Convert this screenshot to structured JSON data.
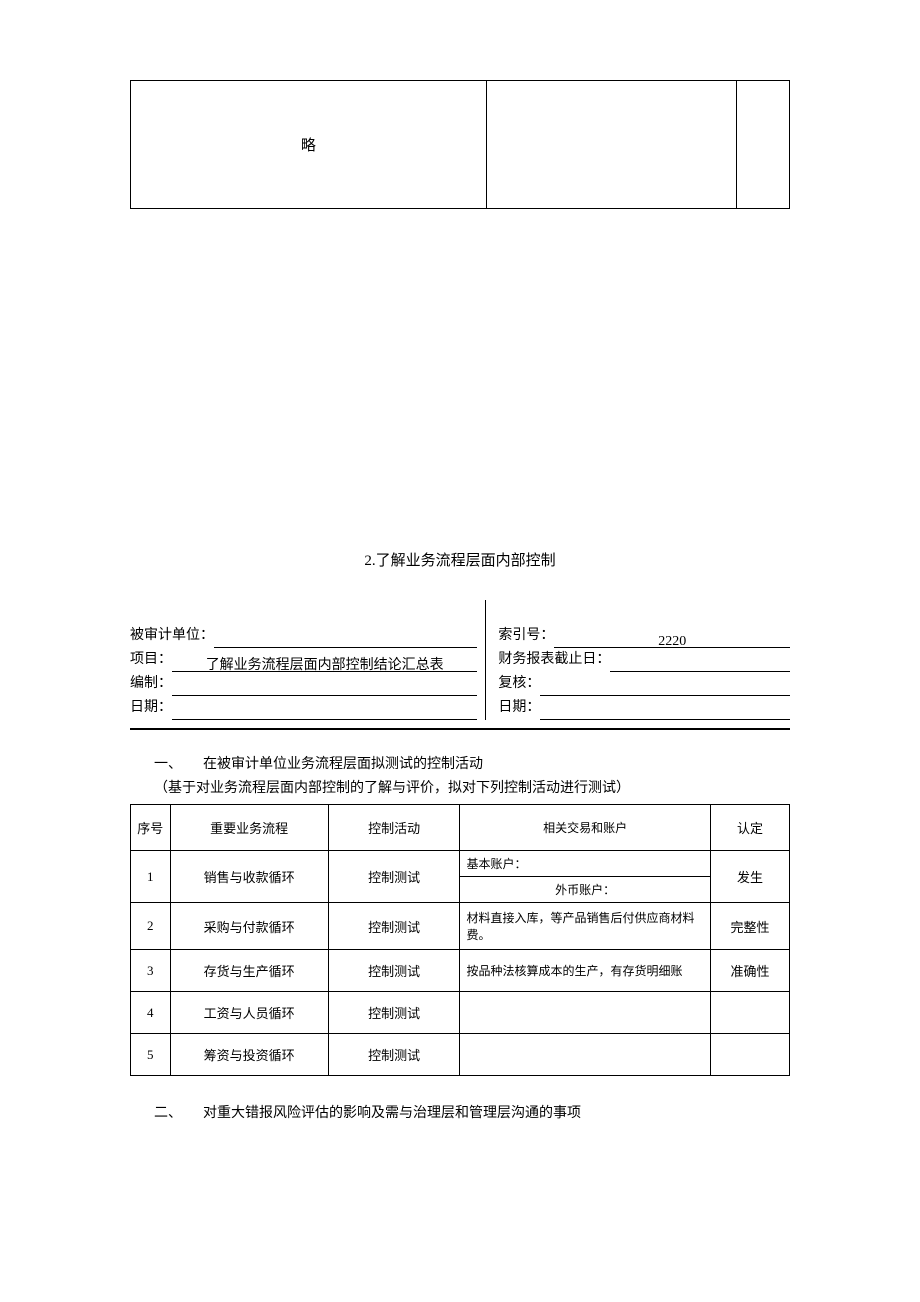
{
  "top_table": {
    "cell1": "略",
    "cell2": "",
    "cell3": ""
  },
  "section_title": "2.了解业务流程层面内部控制",
  "header": {
    "left": {
      "unit_label": "被审计单位：",
      "unit_value": "",
      "proj_label": "项目：",
      "proj_value": "了解业务流程层面内部控制结论汇总表",
      "prep_label": "编制：",
      "prep_value": "",
      "date_label": "日期：",
      "date_value": ""
    },
    "right": {
      "index_label": "索引号：",
      "index_value": "2220",
      "cutoff_label": "财务报表截止日：",
      "cutoff_value": "",
      "review_label": "复核：",
      "review_value": "",
      "date_label": "日期：",
      "date_value": ""
    }
  },
  "section1_heading": "一、　　在被审计单位业务流程层面拟测试的控制活动",
  "section1_sub": "（基于对业务流程层面内部控制的了解与评价，拟对下列控制活动进行测试）",
  "table": {
    "columns": {
      "seq": "序号",
      "proc": "重要业务流程",
      "act": "控制活动",
      "rel": "相关交易和账户",
      "ass": "认定"
    },
    "rows": [
      {
        "seq": "1",
        "proc": "销售与收款循环",
        "act": "控制测试",
        "rel_top": "基本账户：",
        "rel_bot": "外币账户：",
        "ass": "发生"
      },
      {
        "seq": "2",
        "proc": "采购与付款循环",
        "act": "控制测试",
        "rel": "材料直接入库，等产品销售后付供应商材料费。",
        "ass": "完整性"
      },
      {
        "seq": "3",
        "proc": "存货与生产循环",
        "act": "控制测试",
        "rel": "按品种法核算成本的生产，有存货明细账",
        "ass": "准确性"
      },
      {
        "seq": "4",
        "proc": "工资与人员循环",
        "act": "控制测试",
        "rel": "",
        "ass": ""
      },
      {
        "seq": "5",
        "proc": "筹资与投资循环",
        "act": "控制测试",
        "rel": "",
        "ass": ""
      }
    ]
  },
  "section2_heading": "二、　　对重大错报风险评估的影响及需与治理层和管理层沟通的事项"
}
